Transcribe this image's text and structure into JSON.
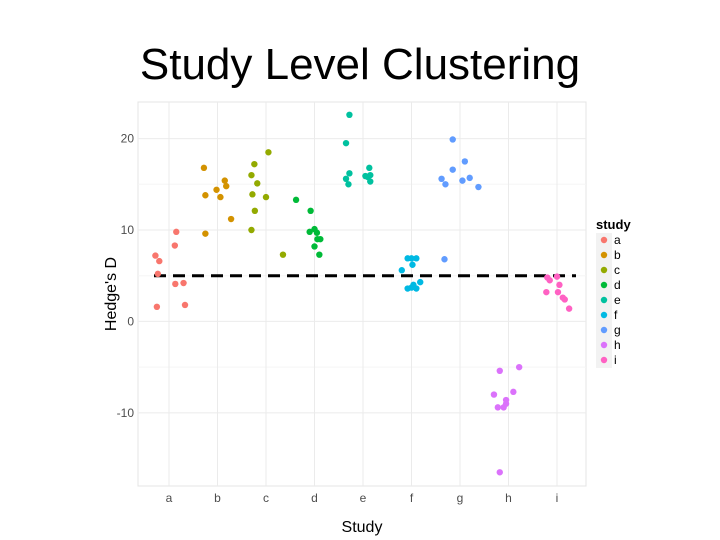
{
  "slide": {
    "title": "Study Level Clustering"
  },
  "chart_data": {
    "type": "scatter",
    "xlabel": "Study",
    "ylabel": "Hedge's D",
    "categories": [
      "a",
      "b",
      "c",
      "d",
      "e",
      "f",
      "g",
      "h",
      "i"
    ],
    "ylim": [
      -18,
      24
    ],
    "yticks": [
      -10,
      0,
      10,
      20
    ],
    "grid": true,
    "reference_line": {
      "y": 5,
      "style": "dashed"
    },
    "legend": {
      "title": "study",
      "placement": "right"
    },
    "colors": {
      "a": "#F8766D",
      "b": "#D39200",
      "c": "#93AA00",
      "d": "#00BA38",
      "e": "#00C19F",
      "f": "#00B9E3",
      "g": "#619CFF",
      "h": "#DB72FB",
      "i": "#FF61C3"
    },
    "series": [
      {
        "name": "a",
        "points": [
          [
            -0.28,
            7.2
          ],
          [
            -0.2,
            6.6
          ],
          [
            -0.23,
            5.2
          ],
          [
            -0.25,
            1.6
          ],
          [
            0.15,
            9.8
          ],
          [
            0.12,
            8.3
          ],
          [
            0.13,
            4.1
          ],
          [
            0.3,
            4.2
          ],
          [
            0.33,
            1.8
          ]
        ]
      },
      {
        "name": "b",
        "points": [
          [
            -0.28,
            16.8
          ],
          [
            -0.25,
            13.8
          ],
          [
            -0.25,
            9.6
          ],
          [
            -0.02,
            14.4
          ],
          [
            0.06,
            13.6
          ],
          [
            0.15,
            15.4
          ],
          [
            0.18,
            14.8
          ],
          [
            0.28,
            11.2
          ]
        ]
      },
      {
        "name": "c",
        "points": [
          [
            -0.3,
            16.0
          ],
          [
            -0.24,
            17.2
          ],
          [
            -0.28,
            13.9
          ],
          [
            -0.23,
            12.1
          ],
          [
            -0.3,
            10.0
          ],
          [
            -0.18,
            15.1
          ],
          [
            0.0,
            13.6
          ],
          [
            0.05,
            18.5
          ],
          [
            0.35,
            7.3
          ]
        ]
      },
      {
        "name": "d",
        "points": [
          [
            -0.38,
            13.3
          ],
          [
            -0.08,
            12.1
          ],
          [
            -0.1,
            9.8
          ],
          [
            0.0,
            10.1
          ],
          [
            0.05,
            9.7
          ],
          [
            0.0,
            8.2
          ],
          [
            0.06,
            9.0
          ],
          [
            0.12,
            9.0
          ],
          [
            0.1,
            7.3
          ]
        ]
      },
      {
        "name": "e",
        "points": [
          [
            -0.35,
            19.5
          ],
          [
            -0.28,
            22.6
          ],
          [
            -0.35,
            15.6
          ],
          [
            -0.28,
            16.2
          ],
          [
            -0.3,
            15.0
          ],
          [
            0.05,
            15.9
          ],
          [
            0.1,
            15.8
          ],
          [
            0.13,
            16.8
          ],
          [
            0.15,
            15.3
          ],
          [
            0.15,
            16.0
          ]
        ]
      },
      {
        "name": "f",
        "points": [
          [
            -0.2,
            5.6
          ],
          [
            -0.08,
            6.9
          ],
          [
            0.0,
            6.9
          ],
          [
            0.02,
            6.2
          ],
          [
            0.1,
            6.9
          ],
          [
            -0.08,
            3.6
          ],
          [
            0.0,
            3.7
          ],
          [
            0.04,
            4.0
          ],
          [
            0.1,
            3.6
          ],
          [
            0.18,
            4.3
          ]
        ]
      },
      {
        "name": "g",
        "points": [
          [
            -0.38,
            15.6
          ],
          [
            -0.3,
            15.0
          ],
          [
            -0.15,
            16.6
          ],
          [
            -0.15,
            19.9
          ],
          [
            0.1,
            17.5
          ],
          [
            0.05,
            15.4
          ],
          [
            0.2,
            15.7
          ],
          [
            0.38,
            14.7
          ],
          [
            -0.32,
            6.8
          ]
        ]
      },
      {
        "name": "h",
        "points": [
          [
            -0.18,
            -5.4
          ],
          [
            -0.3,
            -8.0
          ],
          [
            -0.22,
            -9.4
          ],
          [
            -0.1,
            -9.4
          ],
          [
            -0.05,
            -9.0
          ],
          [
            -0.05,
            -8.6
          ],
          [
            0.1,
            -7.7
          ],
          [
            0.22,
            -5.0
          ],
          [
            -0.18,
            -16.5
          ]
        ]
      },
      {
        "name": "i",
        "points": [
          [
            -0.2,
            4.8
          ],
          [
            -0.15,
            4.5
          ],
          [
            0.0,
            4.9
          ],
          [
            0.05,
            4.0
          ],
          [
            -0.22,
            3.2
          ],
          [
            0.02,
            3.2
          ],
          [
            0.12,
            2.6
          ],
          [
            0.16,
            2.4
          ],
          [
            0.25,
            1.4
          ]
        ]
      }
    ]
  }
}
